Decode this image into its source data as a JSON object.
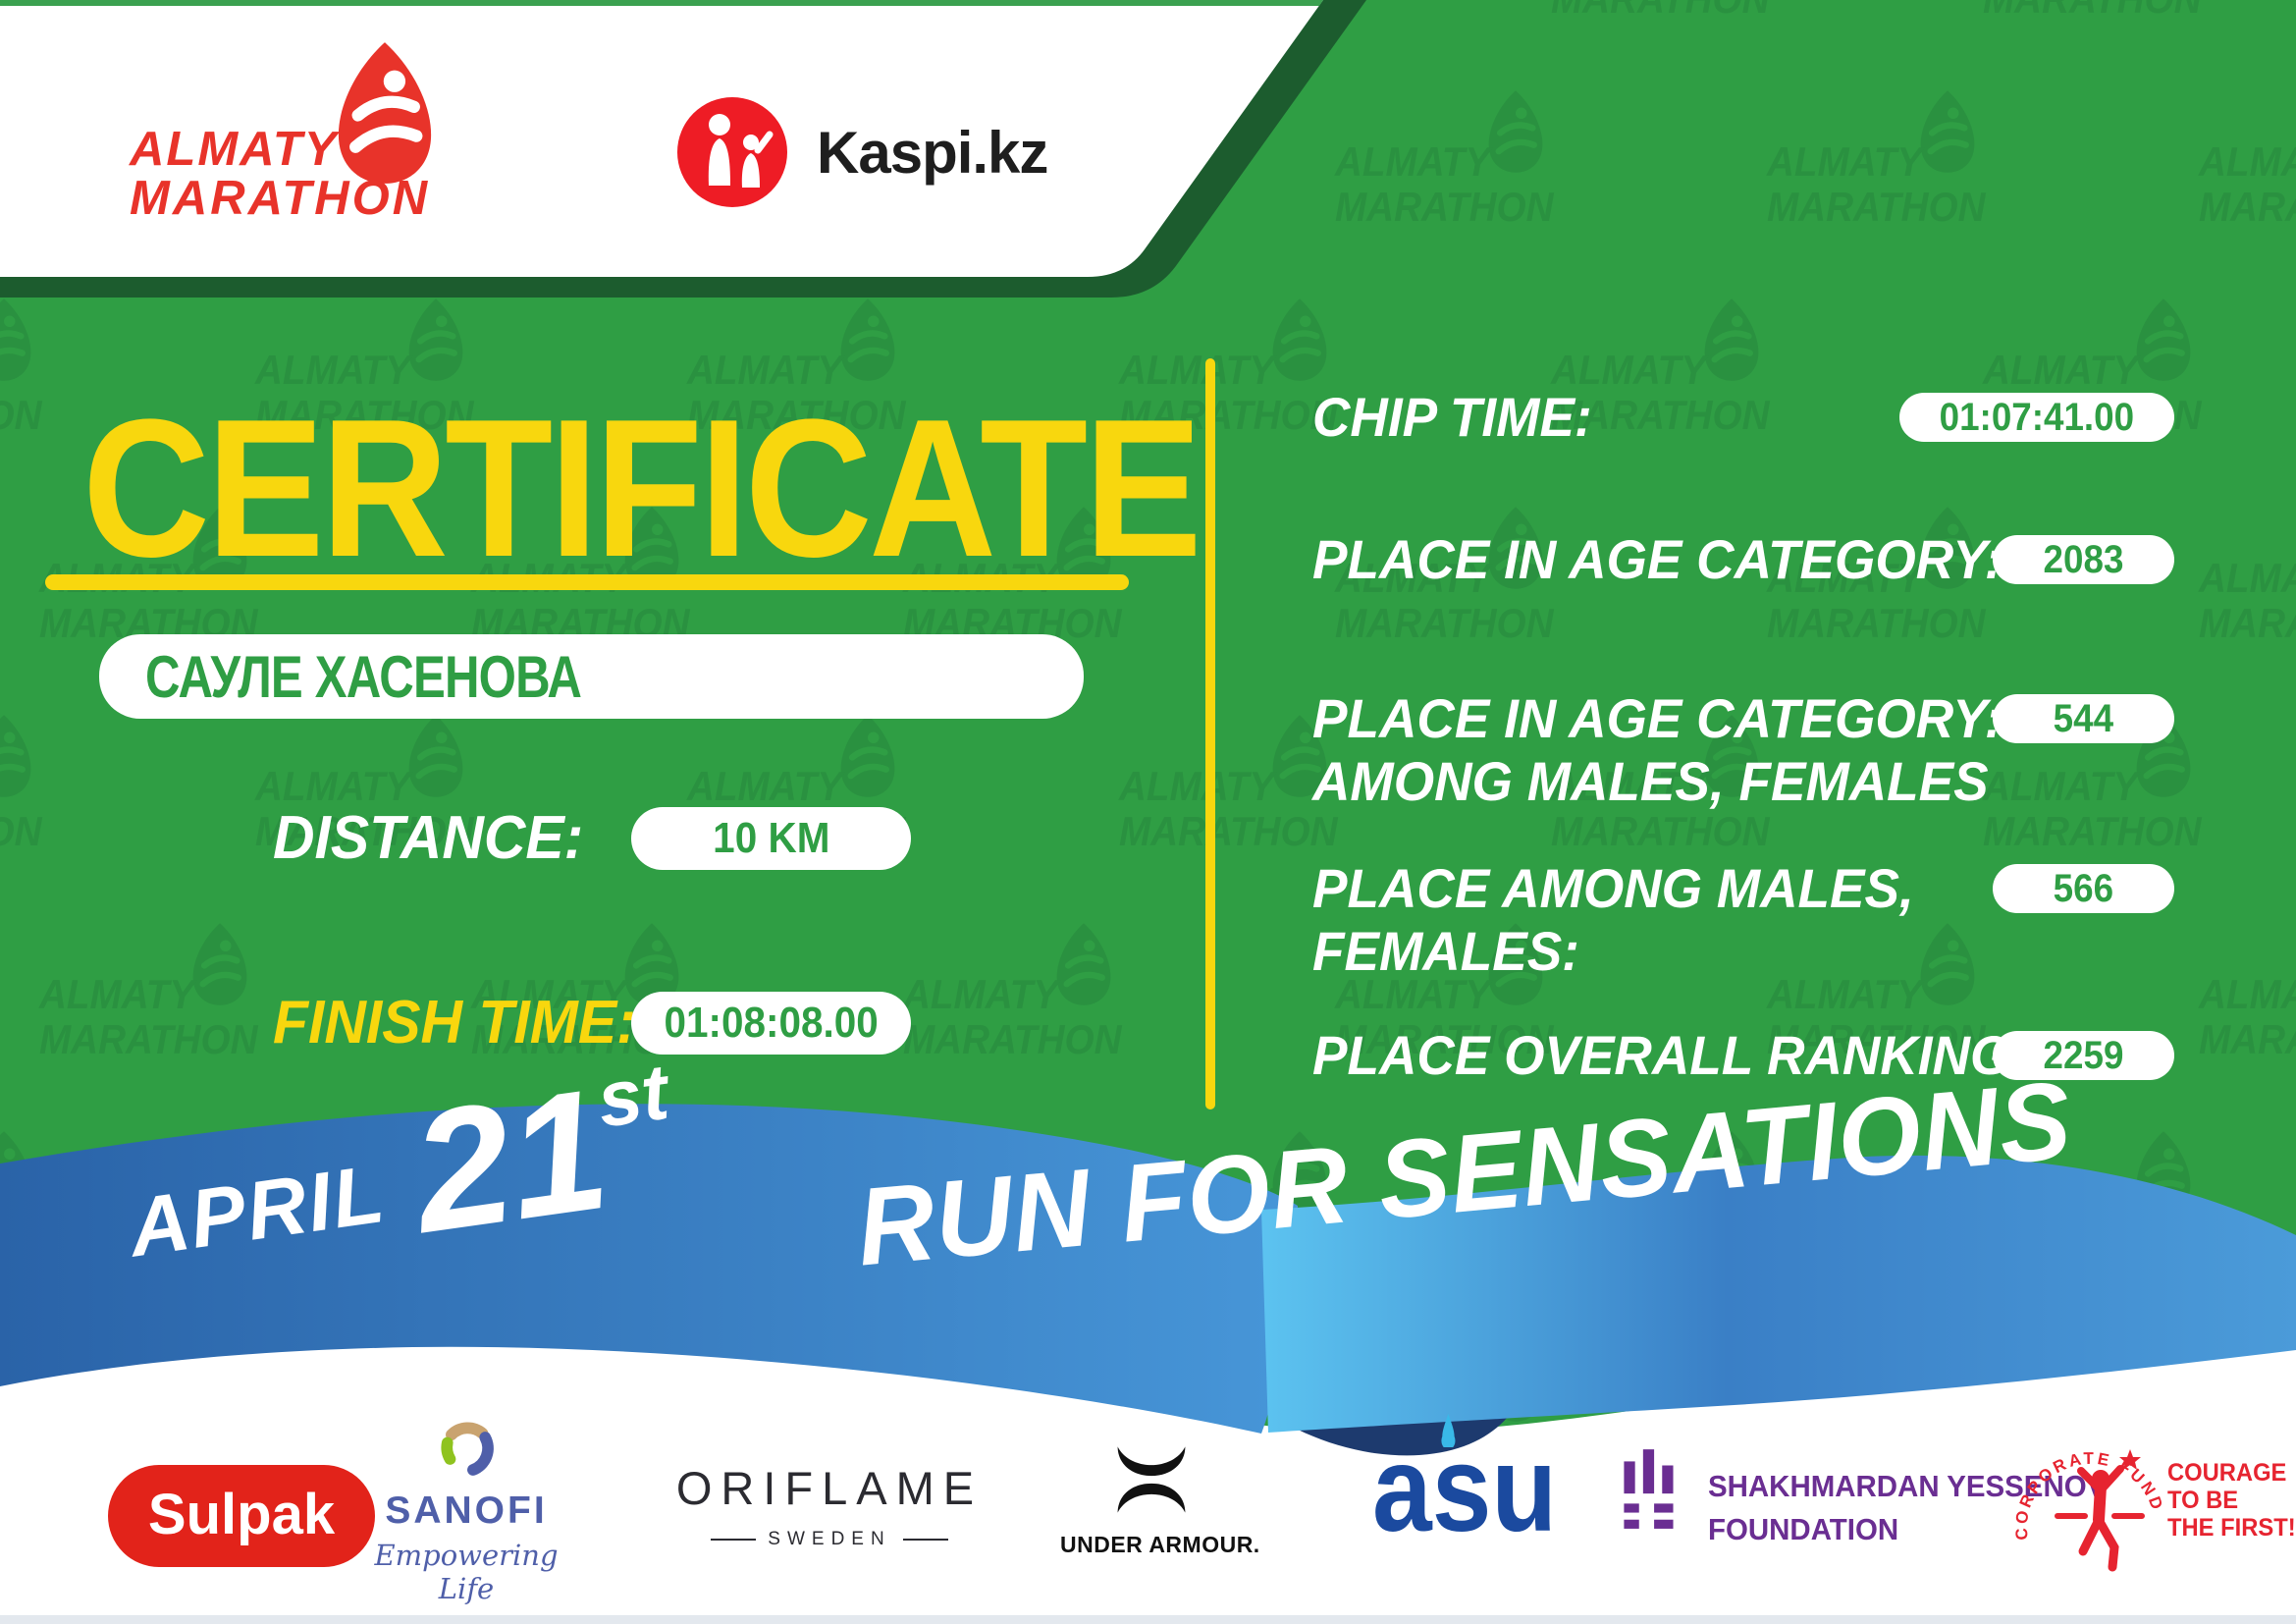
{
  "colors": {
    "green": "#2f9e44",
    "greenDark": "#1c5c2e",
    "wm": "#2a9140",
    "topStrip": "#3ba150",
    "yellow": "#f8d70e",
    "ribbonL1": "#2a63a8",
    "ribbonL2": "#4796d8",
    "ribbonR1": "#5cc3f0",
    "ribbonR2": "#3a7fc6",
    "ribbonR3": "#4b9bd9",
    "fold": "#1d3a6e",
    "almatyRed": "#e8332a",
    "kaspiRed": "#ee1c25",
    "sulpak": "#e2231a",
    "sanofi": "#4f5fa9",
    "sanofiGreen": "#8fc31f",
    "sanofiBeige": "#c9a36f",
    "oriflame": "#2b2b31",
    "ua": "#111111",
    "asu": "#1b4a9f",
    "asuCyan": "#39b9e8",
    "yessenov": "#6a2e92",
    "courage": "#e62430",
    "footerStrip": "#e3e8ee"
  },
  "header": {
    "almaty_logo": {
      "line1": "ALMATY",
      "line2": "MARATHON"
    },
    "kaspi_logo": {
      "text": "Kaspi.kz"
    }
  },
  "watermark": {
    "line1": "ALMATY",
    "line2": "MARATHON"
  },
  "certificate": {
    "title": "CERTIFICATE",
    "name": "САУЛЕ ХАСЕНОВА",
    "distance_label": "DISTANCE:",
    "distance_value": "10 KM",
    "finish_label": "FINISH TIME:",
    "finish_value": "01:08:08.00"
  },
  "results": [
    {
      "label_lines": [
        "CHIP TIME:"
      ],
      "value": "01:07:41.00"
    },
    {
      "label_lines": [
        "PLACE IN AGE CATEGORY:"
      ],
      "value": "2083"
    },
    {
      "label_lines": [
        "PLACE IN AGE CATEGORY:",
        "AMONG MALES, FEMALES"
      ],
      "value": "544"
    },
    {
      "label_lines": [
        "PLACE AMONG MALES,",
        "FEMALES:"
      ],
      "value": "566"
    },
    {
      "label_lines": [
        "PLACE OVERALL RANKING:"
      ],
      "value": "2259"
    }
  ],
  "ribbon": {
    "month": "APRIL",
    "day": "21",
    "day_suffix": "st",
    "slogan": "RUN FOR SENSATIONS"
  },
  "sponsors": {
    "sulpak": {
      "name": "Sulpak"
    },
    "sanofi": {
      "name": "SANOFI",
      "tagline": "Empowering Life"
    },
    "oriflame": {
      "name": "ORIFLAME",
      "country": "SWEDEN"
    },
    "under_armour": {
      "name": "UNDER ARMOUR."
    },
    "asu": {
      "left": "a",
      "right": "su"
    },
    "yessenov": {
      "line1": "SHAKHMARDAN YESSENOV",
      "line2": "FOUNDATION"
    },
    "courage": {
      "arc": "CORPORATE FUND",
      "line1": "COURAGE",
      "line2": "TO BE",
      "line3": "THE FIRST!"
    }
  }
}
